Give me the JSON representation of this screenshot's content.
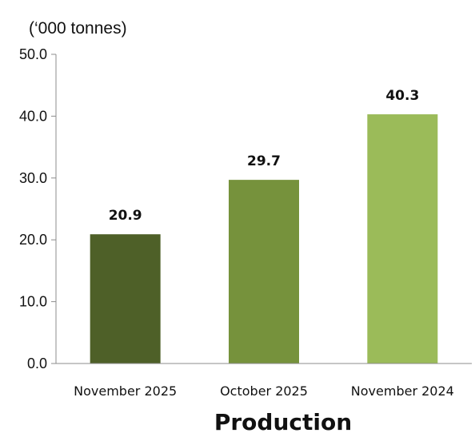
{
  "chart_data": {
    "type": "bar",
    "title": "Production",
    "unit_label": "(‘000 tonnes)",
    "categories": [
      "November 2025",
      "October 2025",
      "November 2024"
    ],
    "values": [
      20.9,
      29.7,
      40.3
    ],
    "value_labels": [
      "20.9",
      "29.7",
      "40.3"
    ],
    "ylim": [
      0,
      50
    ],
    "yticks": [
      "0.0",
      "10.0",
      "20.0",
      "30.0",
      "40.0",
      "50.0"
    ],
    "bar_colors": [
      "#4e6028",
      "#76923c",
      "#9bbb59"
    ],
    "grid": false,
    "legend": "none"
  }
}
